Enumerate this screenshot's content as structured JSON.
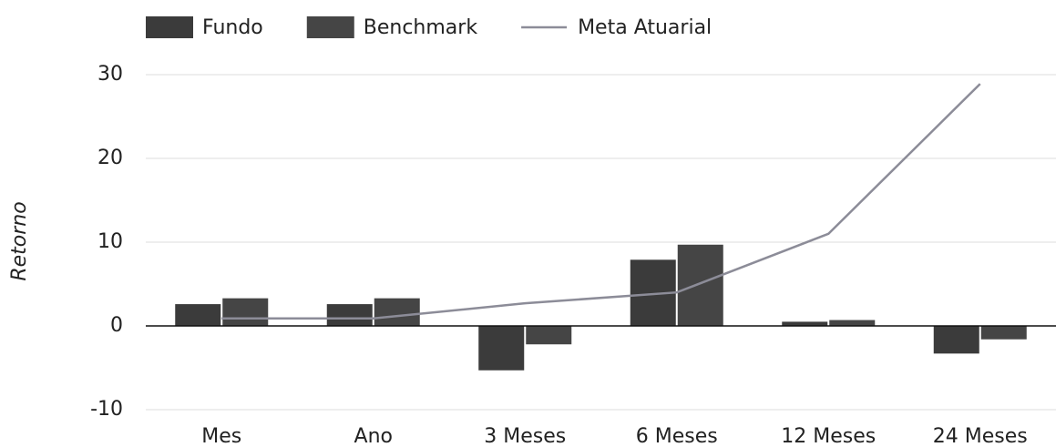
{
  "chart_data": {
    "type": "bar",
    "y_label": "Retorno",
    "categories": [
      "Mes",
      "Ano",
      "3 Meses",
      "6 Meses",
      "12 Meses",
      "24 Meses"
    ],
    "series": [
      {
        "name": "Fundo",
        "color": "#3b3b3b",
        "values": [
          2.6,
          2.6,
          -5.3,
          7.9,
          0.5,
          -3.3
        ]
      },
      {
        "name": "Benchmark",
        "color": "#454545",
        "values": [
          3.3,
          3.3,
          -2.2,
          9.7,
          0.7,
          -1.6
        ]
      },
      {
        "name": "Meta Atuarial",
        "type": "line",
        "color": "#8c8c98",
        "values": [
          0.9,
          0.9,
          2.7,
          4.0,
          11,
          28.9
        ]
      }
    ],
    "ylim": [
      -11.5,
      31.5
    ],
    "yticks": [
      -10,
      0,
      10,
      20,
      30
    ],
    "grid": true,
    "legend": "top-left"
  }
}
